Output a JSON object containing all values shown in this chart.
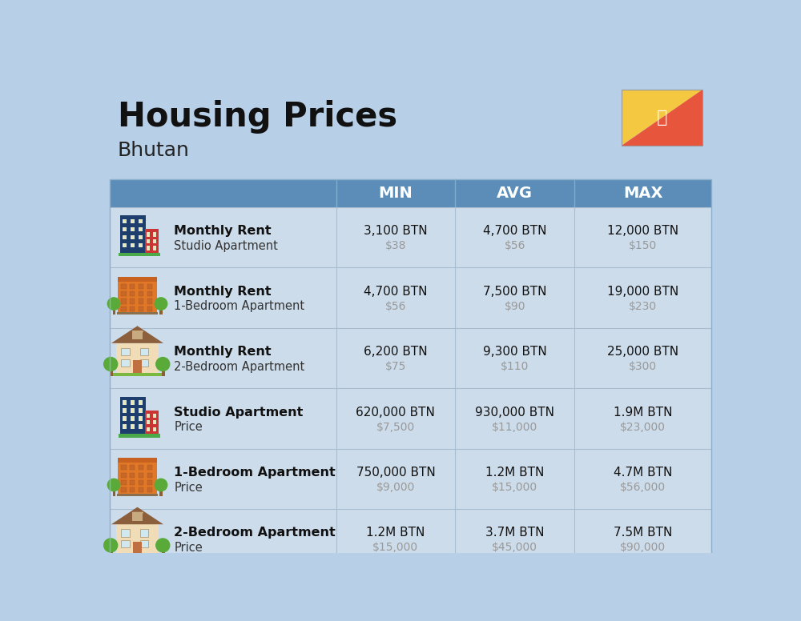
{
  "title": "Housing Prices",
  "subtitle": "Bhutan",
  "background_color": "#b8cfe8",
  "header_color": "#5b8db8",
  "header_text_color": "#ffffff",
  "row_bg_light": "#cddcea",
  "row_bg_dark": "#c0d0e2",
  "divider_color": "#a8bdd0",
  "col_headers": [
    "MIN",
    "AVG",
    "MAX"
  ],
  "rows": [
    {
      "icon_type": "blue",
      "label_bold": "Monthly Rent",
      "label_sub": "Studio Apartment",
      "min_btn": "3,100 BTN",
      "min_usd": "$38",
      "avg_btn": "4,700 BTN",
      "avg_usd": "$56",
      "max_btn": "12,000 BTN",
      "max_usd": "$150"
    },
    {
      "icon_type": "orange",
      "label_bold": "Monthly Rent",
      "label_sub": "1-Bedroom Apartment",
      "min_btn": "4,700 BTN",
      "min_usd": "$56",
      "avg_btn": "7,500 BTN",
      "avg_usd": "$90",
      "max_btn": "19,000 BTN",
      "max_usd": "$230"
    },
    {
      "icon_type": "beige",
      "label_bold": "Monthly Rent",
      "label_sub": "2-Bedroom Apartment",
      "min_btn": "6,200 BTN",
      "min_usd": "$75",
      "avg_btn": "9,300 BTN",
      "avg_usd": "$110",
      "max_btn": "25,000 BTN",
      "max_usd": "$300"
    },
    {
      "icon_type": "blue",
      "label_bold": "Studio Apartment",
      "label_sub": "Price",
      "min_btn": "620,000 BTN",
      "min_usd": "$7,500",
      "avg_btn": "930,000 BTN",
      "avg_usd": "$11,000",
      "max_btn": "1.9M BTN",
      "max_usd": "$23,000"
    },
    {
      "icon_type": "orange",
      "label_bold": "1-Bedroom Apartment",
      "label_sub": "Price",
      "min_btn": "750,000 BTN",
      "min_usd": "$9,000",
      "avg_btn": "1.2M BTN",
      "avg_usd": "$15,000",
      "max_btn": "4.7M BTN",
      "max_usd": "$56,000"
    },
    {
      "icon_type": "beige",
      "label_bold": "2-Bedroom Apartment",
      "label_sub": "Price",
      "min_btn": "1.2M BTN",
      "min_usd": "$15,000",
      "avg_btn": "3.7M BTN",
      "avg_usd": "$45,000",
      "max_btn": "7.5M BTN",
      "max_usd": "$90,000"
    }
  ],
  "flag_yellow": "#f5c842",
  "flag_orange": "#e8553d"
}
